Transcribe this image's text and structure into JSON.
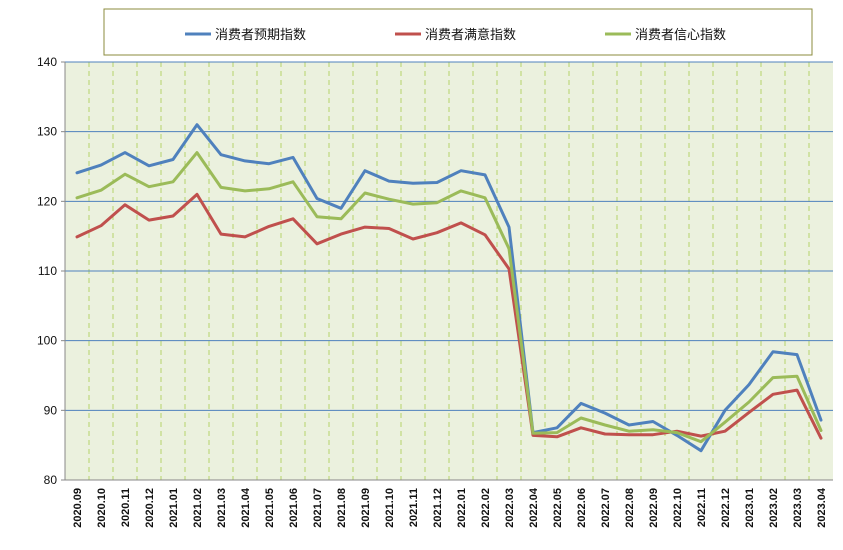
{
  "chart_data": {
    "type": "line",
    "title": "",
    "xlabel": "",
    "ylabel": "",
    "ylim": [
      80,
      140
    ],
    "yticks": [
      80,
      90,
      100,
      110,
      120,
      130,
      140
    ],
    "grid": "horizontal solid, vertical dashed",
    "legend_position": "top",
    "background_color": "#ebf1de",
    "categories": [
      "2020.09",
      "2020.10",
      "2020.11",
      "2020.12",
      "2021.01",
      "2021.02",
      "2021.03",
      "2021.04",
      "2021.05",
      "2021.06",
      "2021.07",
      "2021.08",
      "2021.09",
      "2021.10",
      "2021.11",
      "2021.12",
      "2022.01",
      "2022.02",
      "2022.03",
      "2022.04",
      "2022.05",
      "2022.06",
      "2022.07",
      "2022.08",
      "2022.09",
      "2022.10",
      "2022.11",
      "2022.12",
      "2023.01",
      "2023.02",
      "2023.03",
      "2023.04"
    ],
    "series": [
      {
        "name": "消费者预期指数",
        "color": "#4f81bd",
        "values": [
          124.1,
          125.2,
          127.0,
          125.1,
          126.0,
          131.0,
          126.7,
          125.8,
          125.4,
          126.3,
          120.4,
          119.0,
          124.4,
          122.9,
          122.6,
          122.7,
          124.4,
          123.8,
          116.3,
          86.8,
          87.5,
          91.0,
          89.6,
          87.9,
          88.4,
          86.4,
          84.2,
          90.0,
          93.7,
          98.4,
          98.0,
          88.6
        ]
      },
      {
        "name": "消费者满意指数",
        "color": "#c0504d",
        "values": [
          114.9,
          116.5,
          119.5,
          117.3,
          117.9,
          121.0,
          115.3,
          114.9,
          116.4,
          117.5,
          113.9,
          115.3,
          116.3,
          116.1,
          114.6,
          115.5,
          116.9,
          115.2,
          110.3,
          86.4,
          86.2,
          87.5,
          86.6,
          86.5,
          86.5,
          87.0,
          86.3,
          87.0,
          89.7,
          92.3,
          92.9,
          86.0
        ]
      },
      {
        "name": "消费者信心指数",
        "color": "#9bbb59",
        "values": [
          120.5,
          121.6,
          123.9,
          122.1,
          122.8,
          127.0,
          122.0,
          121.5,
          121.8,
          122.8,
          117.8,
          117.5,
          121.2,
          120.3,
          119.6,
          119.8,
          121.5,
          120.5,
          113.2,
          86.7,
          86.8,
          88.9,
          87.9,
          87.0,
          87.2,
          86.8,
          85.5,
          88.3,
          91.2,
          94.7,
          94.9,
          87.1
        ]
      }
    ]
  }
}
